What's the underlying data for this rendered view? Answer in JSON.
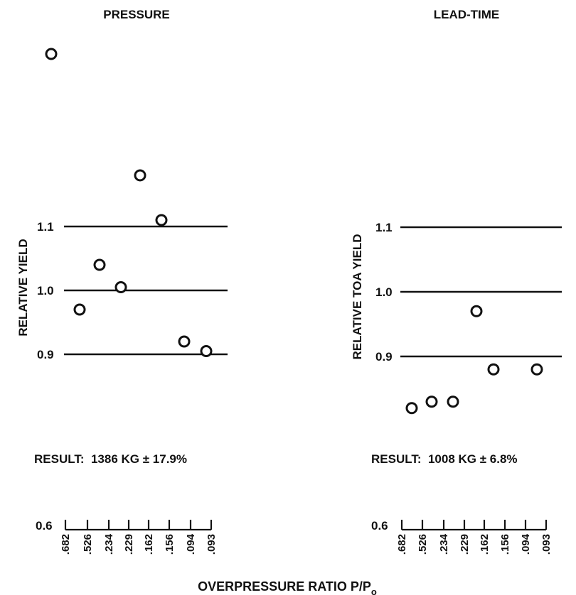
{
  "chart_data": [
    {
      "type": "scatter",
      "title": "PRESSURE",
      "ylabel": "RELATIVE YIELD",
      "yticks": [
        {
          "value": 0.9,
          "label": "0.9"
        },
        {
          "value": 1.0,
          "label": "1.0"
        },
        {
          "value": 1.1,
          "label": "1.1"
        }
      ],
      "reference_lines": [
        0.9,
        1.0,
        1.1
      ],
      "points": [
        {
          "x": 0.682,
          "y": 1.37
        },
        {
          "x": 0.526,
          "y": 0.97
        },
        {
          "x": 0.234,
          "y": 1.04
        },
        {
          "x": 0.229,
          "y": 1.005
        },
        {
          "x": 0.162,
          "y": 1.18
        },
        {
          "x": 0.156,
          "y": 1.11
        },
        {
          "x": 0.094,
          "y": 0.92
        },
        {
          "x": 0.093,
          "y": 0.905
        }
      ],
      "result": "RESULT:  1386 KG ± 17.9%",
      "axis_start_label": "0.6",
      "xtick_labels": [
        ".682",
        ".526",
        ".234",
        ".229",
        ".162",
        ".156",
        ".094",
        ".093"
      ]
    },
    {
      "type": "scatter",
      "title": "LEAD-TIME",
      "ylabel": "RELATIVE TOA YIELD",
      "yticks": [
        {
          "value": 0.9,
          "label": "0.9"
        },
        {
          "value": 1.0,
          "label": "1.0"
        },
        {
          "value": 1.1,
          "label": "1.1"
        }
      ],
      "reference_lines": [
        0.9,
        1.0,
        1.1
      ],
      "points": [
        {
          "x": 0.682,
          "y": 0.82
        },
        {
          "x": 0.526,
          "y": 0.83
        },
        {
          "x": 0.234,
          "y": 0.83
        },
        {
          "x": 0.229,
          "y": 0.97
        },
        {
          "x": 0.162,
          "y": 0.88
        },
        {
          "x": 0.093,
          "y": 0.88
        }
      ],
      "result": "RESULT:  1008 KG ± 6.8%",
      "axis_start_label": "0.6",
      "xtick_labels": [
        ".682",
        ".526",
        ".234",
        ".229",
        ".162",
        ".156",
        ".094",
        ".093"
      ]
    }
  ],
  "shared_xlabel": "OVERPRESSURE RATIO P/P",
  "shared_xlabel_subscript": "o"
}
